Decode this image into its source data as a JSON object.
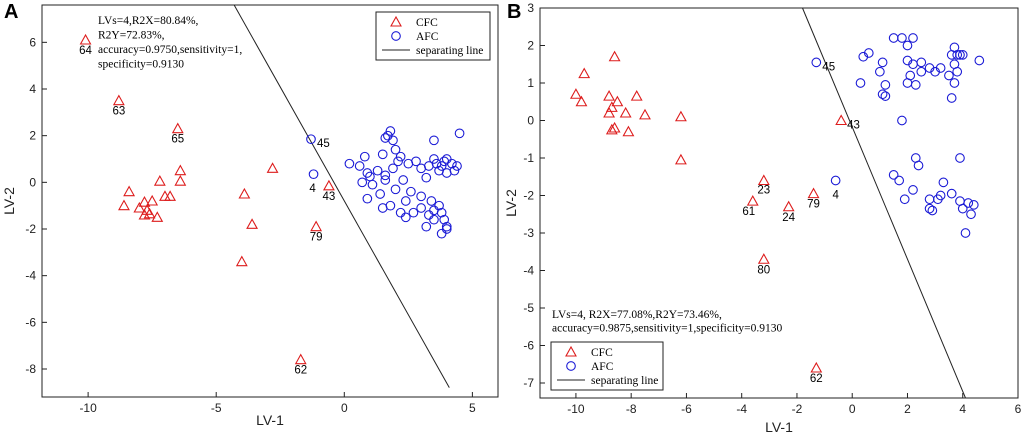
{
  "colors": {
    "cfc": "#dd1c1c",
    "afc": "#1b1bd6",
    "line": "#222222"
  },
  "chart_data": [
    {
      "panel": "A",
      "type": "scatter",
      "xlabel": "LV-1",
      "ylabel": "LV-2",
      "xlim": [
        -11.8,
        6
      ],
      "ylim": [
        -9.2,
        7.6
      ],
      "xticks": [
        -10,
        -5,
        0,
        5
      ],
      "xtick_labels": [
        "-10",
        "-5",
        "0",
        "5"
      ],
      "yticks": [
        -8,
        -6,
        -4,
        -2,
        0,
        2,
        4,
        6
      ],
      "ytick_labels": [
        "-8",
        "-6",
        "-4",
        "-2",
        "0",
        "2",
        "4",
        "6"
      ],
      "annotation": [
        "LVs=4,R2X=80.84%,",
        "R2Y=72.83%,",
        "accuracy=0.9750,sensitivity=1,",
        "specificity=0.9130"
      ],
      "annotation_position": "top-left",
      "legend": {
        "position": "top-right",
        "entries": [
          "CFC",
          "AFC",
          "separating line"
        ]
      },
      "separating_line": [
        [
          -4.3,
          7.6
        ],
        [
          4.1,
          -8.8
        ]
      ],
      "series": [
        {
          "name": "CFC",
          "marker": "triangle",
          "points": [
            [
              -10.1,
              6.1
            ],
            [
              -8.8,
              3.5
            ],
            [
              -6.5,
              2.3
            ],
            [
              -6.4,
              0.5
            ],
            [
              -6.4,
              0.05
            ],
            [
              -7.2,
              0.05
            ],
            [
              -7.0,
              -0.6
            ],
            [
              -6.8,
              -0.6
            ],
            [
              -8.4,
              -0.4
            ],
            [
              -7.5,
              -0.8
            ],
            [
              -7.8,
              -0.85
            ],
            [
              -7.7,
              -1.2
            ],
            [
              -7.6,
              -1.35
            ],
            [
              -7.8,
              -1.4
            ],
            [
              -8.6,
              -1.0
            ],
            [
              -8.0,
              -1.1
            ],
            [
              -7.3,
              -1.5
            ],
            [
              -2.8,
              0.6
            ],
            [
              -3.9,
              -0.5
            ],
            [
              -3.6,
              -1.8
            ],
            [
              -4.0,
              -3.4
            ],
            [
              -1.7,
              -7.6
            ],
            [
              -1.1,
              -1.9
            ],
            [
              -0.6,
              -0.15
            ]
          ],
          "labels": [
            {
              "text": "64",
              "point": 0
            },
            {
              "text": "63",
              "point": 1
            },
            {
              "text": "65",
              "point": 2
            },
            {
              "text": "62",
              "point": 21
            },
            {
              "text": "79",
              "point": 22
            },
            {
              "text": "43",
              "point": 23
            }
          ]
        },
        {
          "name": "AFC",
          "marker": "circle",
          "points": [
            [
              -1.3,
              1.85
            ],
            [
              -1.2,
              0.35
            ],
            [
              0.2,
              0.8
            ],
            [
              0.6,
              0.7
            ],
            [
              0.8,
              1.1
            ],
            [
              0.9,
              0.4
            ],
            [
              1.0,
              0.25
            ],
            [
              1.1,
              -0.1
            ],
            [
              0.9,
              -0.7
            ],
            [
              0.7,
              0.0
            ],
            [
              1.3,
              0.5
            ],
            [
              1.5,
              1.2
            ],
            [
              1.6,
              1.9
            ],
            [
              1.7,
              2.0
            ],
            [
              1.8,
              2.2
            ],
            [
              1.9,
              1.8
            ],
            [
              2.0,
              1.4
            ],
            [
              2.2,
              1.1
            ],
            [
              2.1,
              0.9
            ],
            [
              1.9,
              0.6
            ],
            [
              1.6,
              0.3
            ],
            [
              1.6,
              0.1
            ],
            [
              1.4,
              -0.5
            ],
            [
              1.5,
              -1.1
            ],
            [
              1.8,
              -1.0
            ],
            [
              2.0,
              -0.3
            ],
            [
              2.3,
              0.1
            ],
            [
              2.5,
              0.8
            ],
            [
              2.8,
              0.9
            ],
            [
              3.0,
              0.6
            ],
            [
              3.2,
              0.2
            ],
            [
              3.3,
              0.7
            ],
            [
              3.5,
              1.0
            ],
            [
              3.5,
              1.8
            ],
            [
              3.6,
              0.8
            ],
            [
              3.7,
              0.5
            ],
            [
              3.8,
              0.7
            ],
            [
              3.9,
              0.9
            ],
            [
              4.0,
              0.4
            ],
            [
              4.0,
              1.0
            ],
            [
              4.2,
              0.8
            ],
            [
              4.3,
              0.5
            ],
            [
              4.4,
              0.7
            ],
            [
              4.5,
              2.1
            ],
            [
              3.0,
              -0.6
            ],
            [
              2.6,
              -0.4
            ],
            [
              2.4,
              -0.8
            ],
            [
              2.2,
              -1.3
            ],
            [
              2.4,
              -1.5
            ],
            [
              2.7,
              -1.3
            ],
            [
              3.0,
              -1.1
            ],
            [
              3.3,
              -1.4
            ],
            [
              3.5,
              -1.2
            ],
            [
              3.5,
              -1.6
            ],
            [
              3.7,
              -1.0
            ],
            [
              3.8,
              -1.3
            ],
            [
              3.9,
              -1.6
            ],
            [
              4.0,
              -1.9
            ],
            [
              3.8,
              -2.2
            ],
            [
              4.0,
              -2.0
            ],
            [
              3.2,
              -1.9
            ],
            [
              3.4,
              -0.8
            ]
          ],
          "labels": [
            {
              "text": "45",
              "point": 0
            },
            {
              "text": "4",
              "point": 1
            }
          ]
        }
      ]
    },
    {
      "panel": "B",
      "type": "scatter",
      "xlabel": "LV-1",
      "ylabel": "LV-2",
      "xlim": [
        -11.3,
        6
      ],
      "ylim": [
        -7.4,
        3
      ],
      "xticks": [
        -10,
        -8,
        -6,
        -4,
        -2,
        0,
        2,
        4,
        6
      ],
      "xtick_labels": [
        "-10",
        "-8",
        "-6",
        "-4",
        "-2",
        "0",
        "2",
        "4",
        "6"
      ],
      "yticks": [
        -7,
        -6,
        -5,
        -4,
        -3,
        -2,
        -1,
        0,
        1,
        2,
        3
      ],
      "ytick_labels": [
        "-7",
        "-6",
        "-5",
        "-4",
        "-3",
        "-2",
        "-1",
        "0",
        "1",
        "2",
        "3"
      ],
      "annotation": [
        "LVs=4, R2X=77.08%,R2Y=73.46%,",
        "accuracy=0.9875,sensitivity=1,specificity=0.9130"
      ],
      "annotation_position": "lower-middle",
      "legend": {
        "position": "bottom-left",
        "entries": [
          "CFC",
          "AFC",
          "separating line"
        ]
      },
      "separating_line": [
        [
          -1.8,
          3.0
        ],
        [
          4.1,
          -7.4
        ]
      ],
      "series": [
        {
          "name": "CFC",
          "marker": "triangle",
          "points": [
            [
              -9.7,
              1.25
            ],
            [
              -10.0,
              0.7
            ],
            [
              -9.8,
              0.5
            ],
            [
              -8.6,
              1.7
            ],
            [
              -8.8,
              0.65
            ],
            [
              -8.7,
              0.35
            ],
            [
              -8.5,
              0.5
            ],
            [
              -8.8,
              0.2
            ],
            [
              -8.2,
              0.2
            ],
            [
              -7.8,
              0.65
            ],
            [
              -7.5,
              0.15
            ],
            [
              -8.1,
              -0.3
            ],
            [
              -8.6,
              -0.2
            ],
            [
              -8.7,
              -0.25
            ],
            [
              -6.2,
              0.1
            ],
            [
              -6.2,
              -1.05
            ],
            [
              -3.2,
              -1.6
            ],
            [
              -3.6,
              -2.15
            ],
            [
              -2.3,
              -2.3
            ],
            [
              -1.4,
              -1.95
            ],
            [
              -3.2,
              -3.7
            ],
            [
              -1.3,
              -6.6
            ],
            [
              -0.4,
              0.0
            ]
          ],
          "labels": [
            {
              "text": "23",
              "point": 16
            },
            {
              "text": "61",
              "point": 17
            },
            {
              "text": "24",
              "point": 18
            },
            {
              "text": "79",
              "point": 19
            },
            {
              "text": "80",
              "point": 20
            },
            {
              "text": "62",
              "point": 21
            },
            {
              "text": "43",
              "point": 22
            }
          ]
        },
        {
          "name": "AFC",
          "marker": "circle",
          "points": [
            [
              -1.3,
              1.55
            ],
            [
              -0.6,
              -1.6
            ],
            [
              0.4,
              1.7
            ],
            [
              0.6,
              1.8
            ],
            [
              0.3,
              1.0
            ],
            [
              1.1,
              1.55
            ],
            [
              1.0,
              1.3
            ],
            [
              1.2,
              0.95
            ],
            [
              1.1,
              0.7
            ],
            [
              1.2,
              0.65
            ],
            [
              1.5,
              2.2
            ],
            [
              1.8,
              2.2
            ],
            [
              2.0,
              2.0
            ],
            [
              2.2,
              2.2
            ],
            [
              2.0,
              1.6
            ],
            [
              2.2,
              1.5
            ],
            [
              2.5,
              1.3
            ],
            [
              2.1,
              1.2
            ],
            [
              2.0,
              1.0
            ],
            [
              2.3,
              0.95
            ],
            [
              1.8,
              0.0
            ],
            [
              2.5,
              1.55
            ],
            [
              2.8,
              1.4
            ],
            [
              3.0,
              1.3
            ],
            [
              3.2,
              1.4
            ],
            [
              3.5,
              1.2
            ],
            [
              3.6,
              1.75
            ],
            [
              3.7,
              1.95
            ],
            [
              3.6,
              0.6
            ],
            [
              3.7,
              1.0
            ],
            [
              3.8,
              1.3
            ],
            [
              3.9,
              1.75
            ],
            [
              4.0,
              1.75
            ],
            [
              4.6,
              1.6
            ],
            [
              3.8,
              1.75
            ],
            [
              3.7,
              1.5
            ],
            [
              1.5,
              -1.45
            ],
            [
              1.7,
              -1.6
            ],
            [
              2.3,
              -1.0
            ],
            [
              2.4,
              -1.2
            ],
            [
              2.2,
              -1.85
            ],
            [
              1.9,
              -2.1
            ],
            [
              2.8,
              -2.1
            ],
            [
              2.8,
              -2.35
            ],
            [
              3.1,
              -2.1
            ],
            [
              3.2,
              -2.0
            ],
            [
              3.3,
              -1.65
            ],
            [
              3.6,
              -1.95
            ],
            [
              3.9,
              -1.0
            ],
            [
              3.9,
              -2.15
            ],
            [
              4.0,
              -2.35
            ],
            [
              4.2,
              -2.2
            ],
            [
              4.3,
              -2.5
            ],
            [
              4.1,
              -3.0
            ],
            [
              4.4,
              -2.25
            ],
            [
              2.9,
              -2.4
            ]
          ],
          "labels": [
            {
              "text": "45",
              "point": 0
            },
            {
              "text": "4",
              "point": 1
            }
          ]
        }
      ]
    }
  ]
}
